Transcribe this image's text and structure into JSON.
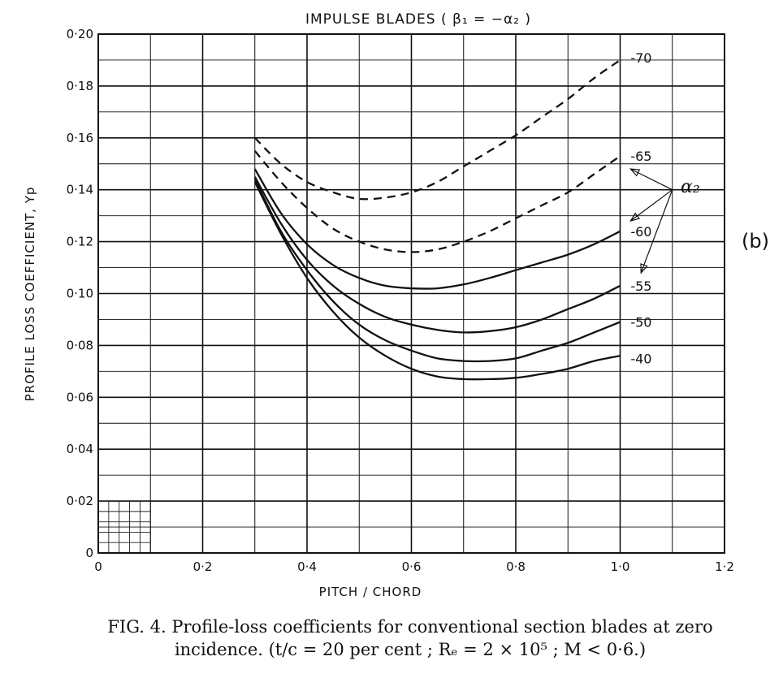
{
  "chart_data": {
    "type": "line",
    "title": "IMPULSE   BLADES  ( β₁ = −α₂ )",
    "xlabel": "PITCH / CHORD",
    "ylabel": "PROFILE   LOSS   COEFFICIENT, Yp",
    "panel_label": "(b)",
    "xlim": [
      0,
      1.2
    ],
    "ylim": [
      0,
      0.2
    ],
    "x_ticks": [
      0,
      0.2,
      0.4,
      0.6,
      0.8,
      1.0,
      1.2
    ],
    "x_tick_labels": [
      "0",
      "0·2",
      "0·4",
      "0·6",
      "0·8",
      "1·0",
      "1·2"
    ],
    "y_ticks": [
      0,
      0.02,
      0.04,
      0.06,
      0.08,
      0.1,
      0.12,
      0.14,
      0.16,
      0.18,
      0.2
    ],
    "y_tick_labels": [
      "0",
      "0·02",
      "0·04",
      "0·06",
      "0·08",
      "0·10",
      "0·12",
      "0·14",
      "0·16",
      "0·18",
      "0·20"
    ],
    "grid": true,
    "arrow_label": "α₂",
    "arrow_origin": [
      1.1,
      0.14
    ],
    "series": [
      {
        "name": "-70",
        "style": "dashed",
        "x": [
          0.3,
          0.35,
          0.4,
          0.45,
          0.5,
          0.55,
          0.6,
          0.65,
          0.7,
          0.75,
          0.8,
          0.85,
          0.9,
          0.95,
          1.0
        ],
        "y": [
          0.16,
          0.15,
          0.143,
          0.139,
          0.1365,
          0.137,
          0.139,
          0.143,
          0.149,
          0.155,
          0.161,
          0.168,
          0.175,
          0.183,
          0.19
        ]
      },
      {
        "name": "-65",
        "style": "dashed",
        "x": [
          0.3,
          0.35,
          0.4,
          0.45,
          0.5,
          0.55,
          0.6,
          0.65,
          0.7,
          0.75,
          0.8,
          0.85,
          0.9,
          0.95,
          1.0
        ],
        "y": [
          0.155,
          0.143,
          0.133,
          0.125,
          0.12,
          0.117,
          0.116,
          0.117,
          0.12,
          0.124,
          0.129,
          0.134,
          0.139,
          0.146,
          0.153
        ]
      },
      {
        "name": "-60",
        "style": "solid",
        "x": [
          0.3,
          0.35,
          0.4,
          0.45,
          0.5,
          0.55,
          0.6,
          0.65,
          0.7,
          0.75,
          0.8,
          0.85,
          0.9,
          0.95,
          1.0
        ],
        "y": [
          0.148,
          0.131,
          0.119,
          0.111,
          0.106,
          0.103,
          0.102,
          0.102,
          0.1035,
          0.106,
          0.109,
          0.112,
          0.115,
          0.119,
          0.124
        ]
      },
      {
        "name": "-55",
        "style": "solid",
        "x": [
          0.3,
          0.35,
          0.4,
          0.45,
          0.5,
          0.55,
          0.6,
          0.65,
          0.7,
          0.75,
          0.8,
          0.85,
          0.9,
          0.95,
          1.0
        ],
        "y": [
          0.145,
          0.127,
          0.113,
          0.103,
          0.096,
          0.091,
          0.088,
          0.086,
          0.085,
          0.0855,
          0.087,
          0.09,
          0.094,
          0.098,
          0.103
        ]
      },
      {
        "name": "-50",
        "style": "solid",
        "x": [
          0.3,
          0.35,
          0.4,
          0.45,
          0.5,
          0.55,
          0.6,
          0.65,
          0.7,
          0.75,
          0.8,
          0.85,
          0.9,
          0.95,
          1.0
        ],
        "y": [
          0.144,
          0.124,
          0.109,
          0.097,
          0.088,
          0.082,
          0.078,
          0.075,
          0.074,
          0.074,
          0.075,
          0.078,
          0.081,
          0.085,
          0.089
        ]
      },
      {
        "name": "-40",
        "style": "solid",
        "x": [
          0.3,
          0.35,
          0.4,
          0.45,
          0.5,
          0.55,
          0.6,
          0.65,
          0.7,
          0.75,
          0.8,
          0.85,
          0.9,
          0.95,
          1.0
        ],
        "y": [
          0.143,
          0.123,
          0.106,
          0.093,
          0.083,
          0.076,
          0.071,
          0.068,
          0.067,
          0.067,
          0.0675,
          0.069,
          0.071,
          0.074,
          0.076
        ]
      }
    ],
    "curve_labels": [
      {
        "text": "-70",
        "x": 1.02,
        "y": 0.191
      },
      {
        "text": "-65",
        "x": 1.02,
        "y": 0.153
      },
      {
        "text": "-60",
        "x": 1.02,
        "y": 0.124
      },
      {
        "text": "-55",
        "x": 1.02,
        "y": 0.103
      },
      {
        "text": "-50",
        "x": 1.02,
        "y": 0.089
      },
      {
        "text": "-40",
        "x": 1.02,
        "y": 0.075
      }
    ]
  },
  "caption": {
    "line1": "FIG. 4.   Profile-loss coefficients for conventional section blades at zero",
    "line2": "incidence.  (t/c = 20 per cent ; Rₑ = 2 × 10⁵ ; M < 0·6.)"
  }
}
